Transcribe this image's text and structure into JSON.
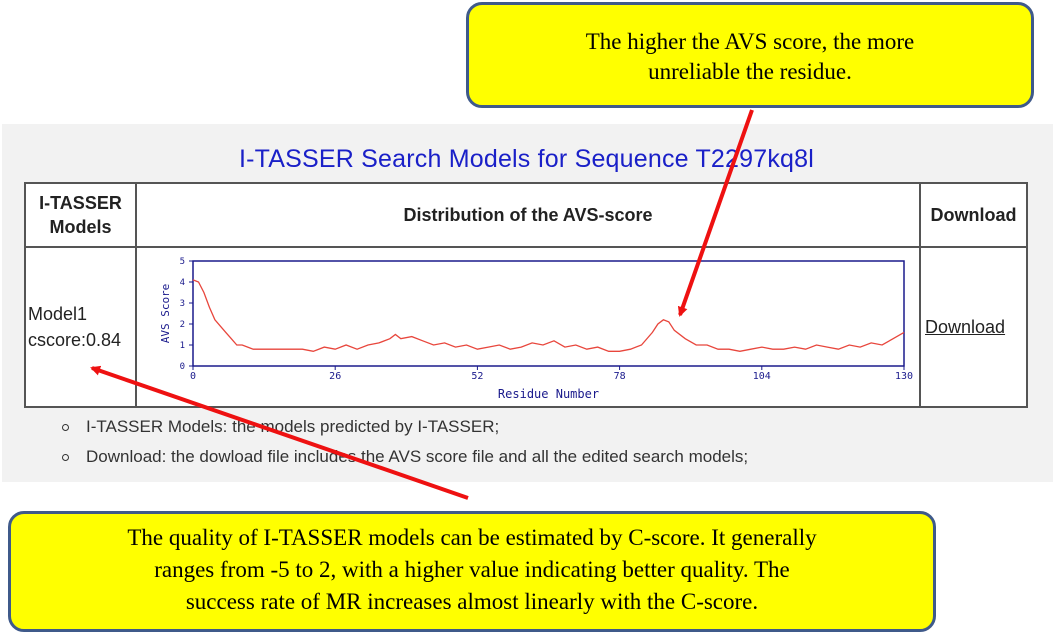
{
  "page": {
    "title": "I-TASSER Search Models for Sequence T2297kq8l"
  },
  "table": {
    "headers": {
      "models": "I-TASSER Models",
      "distribution": "Distribution of the AVS-score",
      "download": "Download"
    },
    "row": {
      "model_name": "Model1",
      "cscore": "cscore:0.84",
      "download_label": "Download"
    }
  },
  "notes": [
    "I-TASSER Models: the models predicted by I-TASSER;",
    "Download: the dowload file includes the AVS score file and all the edited search models;"
  ],
  "callouts": {
    "top": [
      "The higher the AVS score, the more",
      "unreliable  the residue."
    ],
    "bottom": [
      "The quality of I-TASSER models can be estimated by C-score. It generally",
      "ranges  from -5 to 2, with a higher value indicating better quality. The",
      "success rate of MR increases almost linearly with the C-score."
    ]
  },
  "colors": {
    "title": "#1a20c8",
    "line": "#e8463c",
    "plot_frame": "#1a1a8c",
    "arrow": "#ee1111",
    "callout_fill": "#ffff00",
    "callout_border": "#3f5a8a"
  },
  "chart_data": {
    "type": "line",
    "xlabel": "Residue Number",
    "ylabel": "AVS Score",
    "xlim": [
      0,
      130
    ],
    "ylim": [
      0,
      5
    ],
    "xticks": [
      0,
      26,
      52,
      78,
      104,
      130
    ],
    "yticks": [
      0,
      1,
      2,
      3,
      4,
      5
    ],
    "series": [
      {
        "x": [
          0,
          1,
          2,
          3,
          4,
          5,
          6,
          7,
          8,
          9,
          10,
          11,
          12,
          14,
          16,
          18,
          20,
          22,
          24,
          26,
          28,
          30,
          32,
          34,
          36,
          37,
          38,
          40,
          42,
          44,
          46,
          48,
          50,
          52,
          54,
          56,
          58,
          60,
          62,
          64,
          66,
          68,
          70,
          72,
          74,
          76,
          78,
          80,
          82,
          84,
          85,
          86,
          87,
          88,
          90,
          92,
          94,
          96,
          98,
          100,
          102,
          104,
          106,
          108,
          110,
          112,
          114,
          116,
          118,
          120,
          122,
          124,
          126,
          128,
          130
        ],
        "y": [
          4.1,
          4.0,
          3.5,
          2.8,
          2.2,
          1.9,
          1.6,
          1.3,
          1.0,
          1.0,
          0.9,
          0.8,
          0.8,
          0.8,
          0.8,
          0.8,
          0.8,
          0.7,
          0.9,
          0.8,
          1.0,
          0.8,
          1.0,
          1.1,
          1.3,
          1.5,
          1.3,
          1.4,
          1.2,
          1.0,
          1.1,
          0.9,
          1.0,
          0.8,
          0.9,
          1.0,
          0.8,
          0.9,
          1.1,
          1.0,
          1.2,
          0.9,
          1.0,
          0.8,
          0.9,
          0.7,
          0.7,
          0.8,
          1.0,
          1.6,
          2.0,
          2.2,
          2.1,
          1.7,
          1.3,
          1.0,
          1.0,
          0.8,
          0.8,
          0.7,
          0.8,
          0.9,
          0.8,
          0.8,
          0.9,
          0.8,
          1.0,
          0.9,
          0.8,
          1.0,
          0.9,
          1.1,
          1.0,
          1.3,
          1.6
        ]
      }
    ]
  }
}
